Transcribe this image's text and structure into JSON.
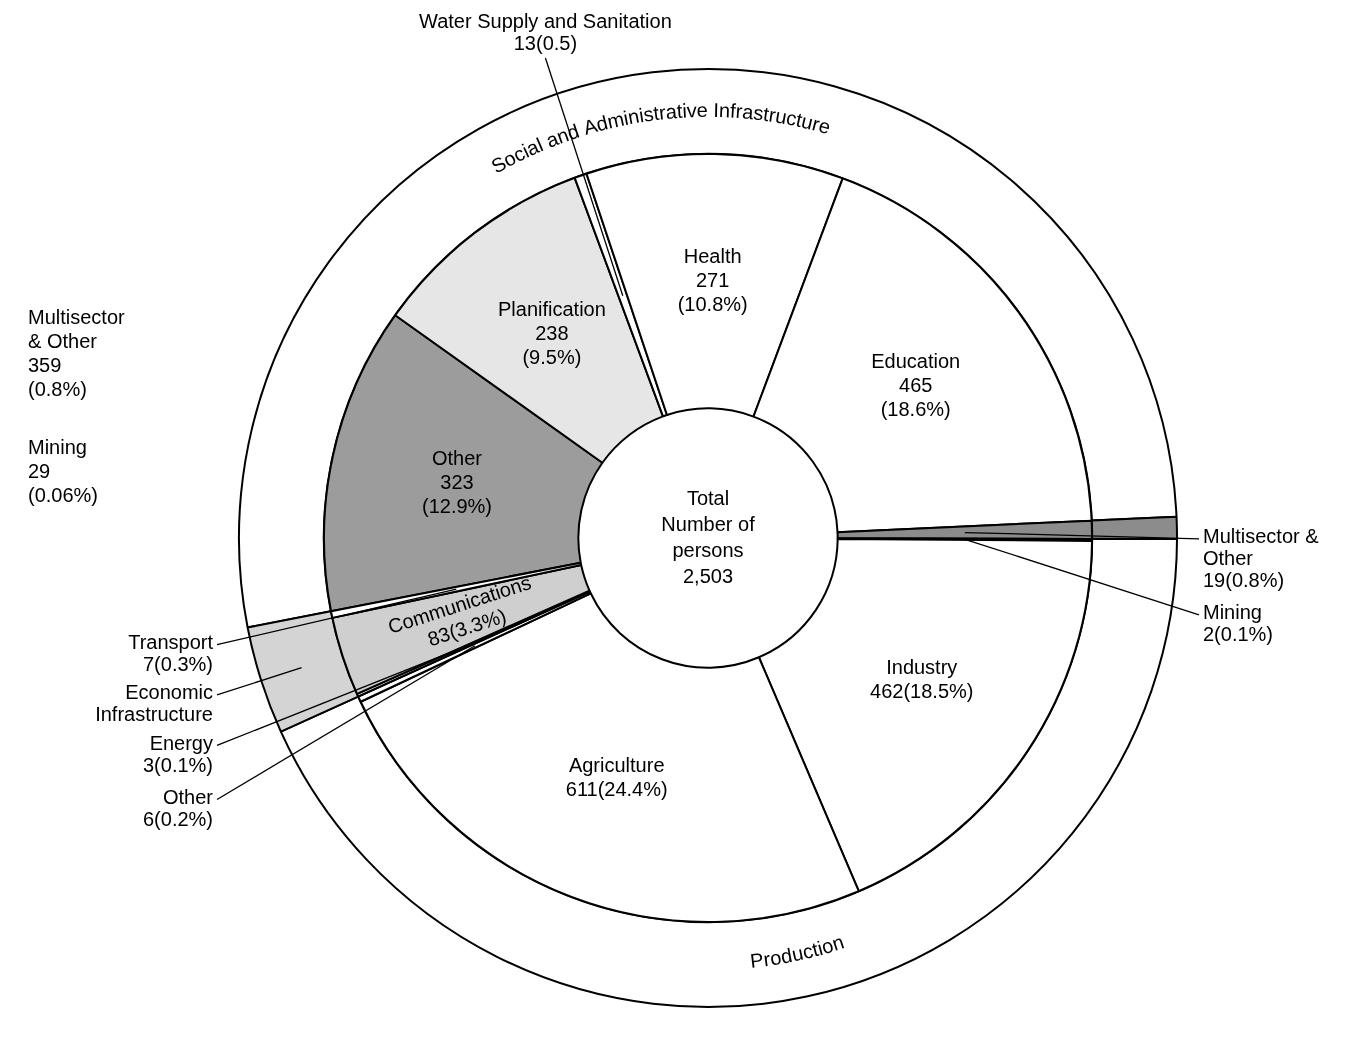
{
  "chart_data": [
    {
      "type": "donut",
      "legend": false,
      "categories": [
        "Social and Administrative Infrastructure",
        null,
        "Production",
        "Economic Infrastructure"
      ],
      "values": [
        52.33,
        0.76,
        43.19,
        3.72
      ],
      "colors": [
        "#ffffff",
        "#8c8c8c",
        "#ffffff",
        "#d4d4d4"
      ],
      "annotations": [
        "Multisector\n& Other\n359\n(0.8%)",
        "Mining\n29\n(0.06%)"
      ]
    },
    {
      "type": "donut",
      "legend": false,
      "categories": [
        "Other",
        "Planification",
        "Water Supply and Sanitation",
        "Health",
        "Education",
        "Multisector & Other",
        "Mining",
        "Industry",
        "Agriculture",
        "Other",
        "Energy",
        "Communications",
        "Transport"
      ],
      "values": [
        323,
        238,
        13,
        271,
        465,
        19,
        2,
        462,
        611,
        6,
        3,
        83,
        7
      ],
      "colors": [
        "#9c9c9c",
        "#e6e6e6",
        "#ffffff",
        "#ffffff",
        "#ffffff",
        "#8c8c8c",
        "#b0b0b0",
        "#ffffff",
        "#ffffff",
        "#ffffff",
        "#ffffff",
        "#cfcfcf",
        "#ffffff"
      ],
      "value_labels": [
        "323\n(12.9%)",
        "238\n(9.5%)",
        "13(0.5)",
        "271\n(10.8%)",
        "465\n(18.6%)",
        "19(0.8%)",
        "2(0.1%)",
        "462(18.5%)",
        "611(24.4%)",
        "6(0.2%)",
        "3(0.1%)",
        "83(3.3%)",
        "7(0.3%)"
      ],
      "annotations": [
        "Total\nNumber of\npersons\n2,503"
      ]
    }
  ]
}
